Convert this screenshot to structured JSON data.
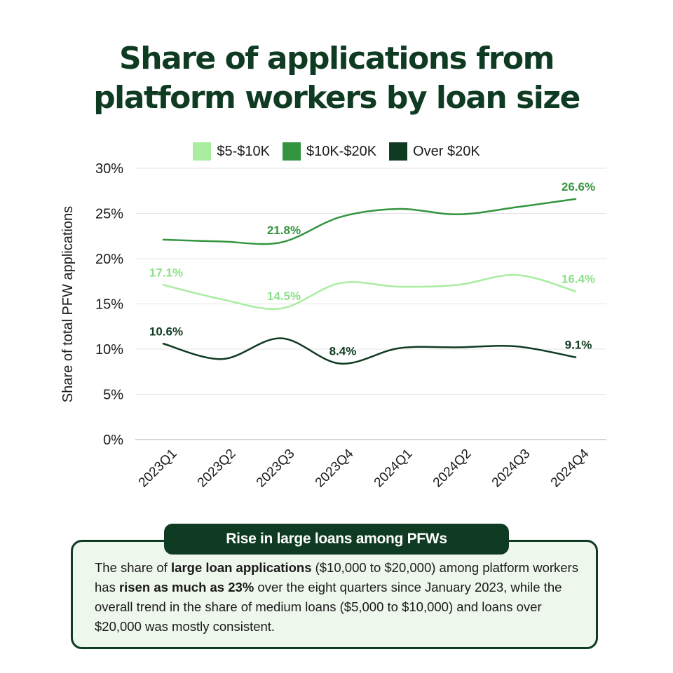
{
  "title": {
    "line1": "Share of applications from",
    "line2": "platform workers by loan size"
  },
  "legend": [
    {
      "label": "$5-$10K",
      "color": "#a8eda0"
    },
    {
      "label": "$10K-$20K",
      "color": "#33953f"
    },
    {
      "label": "Over $20K",
      "color": "#0f3b22"
    }
  ],
  "chart_data": {
    "type": "line",
    "ylabel": "Share of total PFW applications",
    "ylim": [
      0,
      30
    ],
    "yticks": [
      "0%",
      "5%",
      "10%",
      "15%",
      "20%",
      "25%",
      "30%"
    ],
    "categories": [
      "2023Q1",
      "2023Q2",
      "2023Q3",
      "2023Q4",
      "2024Q1",
      "2024Q2",
      "2024Q3",
      "2024Q4"
    ],
    "grid": true,
    "legend_position": "top",
    "series": [
      {
        "name": "$5-$10K",
        "color": "#a8eda0",
        "label_color": "#8ee08a",
        "values": [
          17.1,
          15.5,
          14.5,
          17.3,
          16.9,
          17.1,
          18.2,
          16.4
        ],
        "labels": [
          {
            "index": 0,
            "text": "17.1%"
          },
          {
            "index": 2,
            "text": "14.5%"
          },
          {
            "index": 7,
            "text": "16.4%"
          }
        ]
      },
      {
        "name": "$10K-$20K",
        "color": "#33953f",
        "label_color": "#33953f",
        "values": [
          22.1,
          21.9,
          21.8,
          24.6,
          25.5,
          24.9,
          25.7,
          26.6
        ],
        "labels": [
          {
            "index": 2,
            "text": "21.8%"
          },
          {
            "index": 7,
            "text": "26.6%"
          }
        ]
      },
      {
        "name": "Over $20K",
        "color": "#0f3b22",
        "label_color": "#0f3b22",
        "values": [
          10.6,
          8.9,
          11.2,
          8.4,
          10.1,
          10.2,
          10.3,
          9.1
        ],
        "labels": [
          {
            "index": 0,
            "text": "10.6%"
          },
          {
            "index": 3,
            "text": "8.4%"
          },
          {
            "index": 7,
            "text": "9.1%"
          }
        ]
      }
    ]
  },
  "card": {
    "heading": "Rise in large loans among PFWs",
    "text_parts": [
      {
        "text": "The share of ",
        "bold": false
      },
      {
        "text": "large loan applications",
        "bold": true
      },
      {
        "text": " ($10,000 to $20,000) among platform workers has ",
        "bold": false
      },
      {
        "text": "risen as much as 23%",
        "bold": true
      },
      {
        "text": " over the eight quarters since January 2023, while the overall trend in the share of medium loans ($5,000 to $10,000) and loans over $20,000 was mostly consistent.",
        "bold": false
      }
    ]
  }
}
